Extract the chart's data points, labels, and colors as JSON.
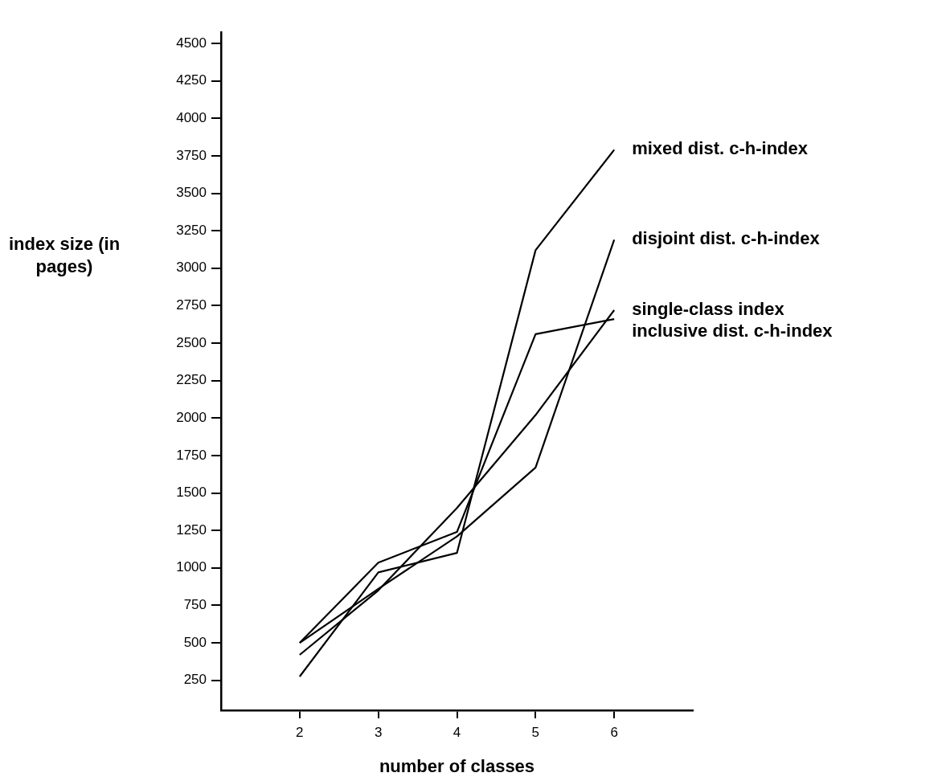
{
  "chart_data": {
    "type": "line",
    "xlabel": "number of classes",
    "ylabel": "index size (in pages)",
    "x": [
      2,
      3,
      4,
      5,
      6
    ],
    "series": [
      {
        "name": "mixed dist. c-h-index",
        "color": "#000000",
        "values": [
          275,
          970,
          1100,
          3120,
          3790
        ]
      },
      {
        "name": "disjoint dist. c-h-index",
        "color": "#000000",
        "values": [
          500,
          860,
          1210,
          1670,
          3190
        ]
      },
      {
        "name": "single-class index",
        "color": "#000000",
        "values": [
          420,
          850,
          1400,
          2020,
          2720
        ]
      },
      {
        "name": "inclusive dist. c-h-index",
        "color": "#000000",
        "values": [
          500,
          1035,
          1240,
          2560,
          2660
        ]
      }
    ],
    "xlim": [
      1,
      7
    ],
    "xticks": [
      2,
      3,
      4,
      5,
      6
    ],
    "ylim": [
      50,
      4575
    ],
    "yticks": [
      250,
      500,
      750,
      1000,
      1250,
      1500,
      1750,
      2000,
      2250,
      2500,
      2750,
      3000,
      3250,
      3500,
      3750,
      4000,
      4250,
      4500
    ],
    "grid": false,
    "legend": false,
    "marker": "none",
    "line_style": "solid"
  }
}
